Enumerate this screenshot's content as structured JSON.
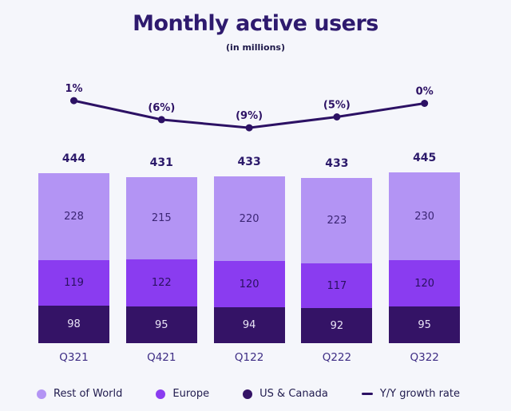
{
  "header": {
    "title": "Monthly active users",
    "subtitle": "(in millions)"
  },
  "colors": {
    "background": "#f5f6fb",
    "title_text": "#2e1a6e",
    "axis_label_text": "#3d2c84",
    "total_label_text": "#2c1a6b",
    "legend_text": "#201b4e"
  },
  "chart_data": {
    "type": "bar",
    "subtype": "stacked-bar-with-line",
    "title": "Monthly active users",
    "subtitle": "(in millions)",
    "categories": [
      "Q321",
      "Q421",
      "Q122",
      "Q222",
      "Q322"
    ],
    "totals": [
      444,
      431,
      433,
      433,
      445
    ],
    "series": [
      {
        "name": "Rest of World",
        "values": [
          228,
          215,
          220,
          223,
          230
        ],
        "color": "#b394f4",
        "label_color": "#3b2574"
      },
      {
        "name": "Europe",
        "values": [
          119,
          122,
          120,
          117,
          120
        ],
        "color": "#8a3cf0",
        "label_color": "#2a1160"
      },
      {
        "name": "US & Canada",
        "values": [
          98,
          95,
          94,
          92,
          95
        ],
        "color": "#341366",
        "label_color": "#e9e4f6"
      }
    ],
    "line_series": {
      "name": "Y/Y growth rate",
      "values": [
        1,
        -6,
        -9,
        -5,
        0
      ],
      "labels": [
        "1%",
        "(6%)",
        "(9%)",
        "(5%)",
        "0%"
      ],
      "color": "#2c1164"
    },
    "legend_position": "bottom",
    "grid": false,
    "value_labels": true
  },
  "legend": {
    "items": [
      {
        "label": "Rest of World",
        "type": "dot",
        "color": "#b394f4"
      },
      {
        "label": "Europe",
        "type": "dot",
        "color": "#8a3cf0"
      },
      {
        "label": "US & Canada",
        "type": "dot",
        "color": "#341366"
      },
      {
        "label": "Y/Y growth rate",
        "type": "dash",
        "color": "#2c1164"
      }
    ]
  }
}
